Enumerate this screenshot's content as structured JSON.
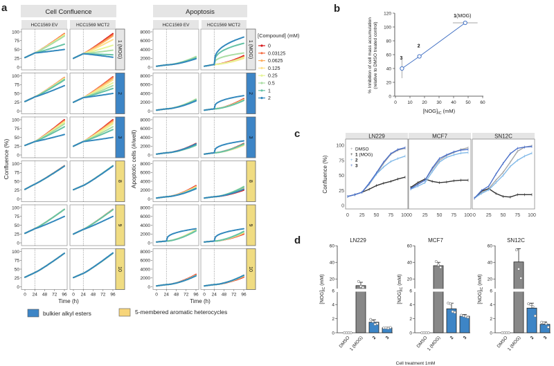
{
  "panel_labels": {
    "a": "a",
    "b": "b",
    "c": "c",
    "d": "d"
  },
  "legend_groups": [
    {
      "label": "bulkier alkyl esters",
      "color": "#3d85c6"
    },
    {
      "label": "5-membered aromatic heterocycles",
      "color": "#f7d57a"
    }
  ],
  "chart_data": [
    {
      "panel": "a-confluence",
      "type": "line",
      "title": "Cell Confluence",
      "columns": [
        "HCC1569 EV",
        "HCC1569 MCT2"
      ],
      "rows": [
        {
          "label": "1 (MOG)",
          "group_color": "#e6e6e6",
          "EV": {
            "t0": 27,
            "t24": 40,
            "end_96h": [
              95,
              95,
              93,
              92,
              90,
              88,
              65,
              50
            ]
          },
          "MCT2": {
            "t0": 25,
            "t24": 38,
            "end_96h": [
              95,
              92,
              88,
              78,
              62,
              48,
              35,
              28
            ]
          }
        },
        {
          "label": "2",
          "group_color": "#3d85c6",
          "EV": {
            "t0": 27,
            "t24": 40,
            "end_96h": [
              95,
              95,
              94,
              93,
              92,
              90,
              88,
              72
            ]
          },
          "MCT2": {
            "t0": 25,
            "t24": 38,
            "end_96h": [
              97,
              96,
              93,
              88,
              80,
              72,
              64,
              50
            ]
          }
        },
        {
          "label": "3",
          "group_color": "#3d85c6",
          "EV": {
            "t0": 27,
            "t24": 38,
            "end_96h": [
              100,
              98,
              96,
              94,
              92,
              88,
              80,
              58
            ]
          },
          "MCT2": {
            "t0": 25,
            "t24": 38,
            "end_96h": [
              100,
              98,
              95,
              92,
              88,
              80,
              72,
              50
            ]
          }
        },
        {
          "label": "8",
          "group_color": "#f0dc82",
          "EV": {
            "t0": 27,
            "t24": 42,
            "end_96h": [
              94,
              94,
              93,
              93,
              93,
              93,
              93,
              93
            ]
          },
          "MCT2": {
            "t0": 26,
            "t24": 38,
            "end_96h": [
              94,
              94,
              94,
              94,
              94,
              94,
              94,
              93
            ]
          }
        },
        {
          "label": "9",
          "group_color": "#f0dc82",
          "EV": {
            "t0": 27,
            "t24": 40,
            "end_96h": [
              95,
              95,
              95,
              95,
              95,
              95,
              95,
              75
            ]
          },
          "MCT2": {
            "t0": 25,
            "t24": 38,
            "end_96h": [
              95,
              95,
              94,
              94,
              94,
              94,
              94,
              75
            ]
          }
        },
        {
          "label": "10",
          "group_color": "#f0dc82",
          "EV": {
            "t0": 27,
            "t24": 40,
            "end_96h": [
              95,
              95,
              95,
              95,
              95,
              95,
              95,
              95
            ]
          },
          "MCT2": {
            "t0": 26,
            "t24": 38,
            "end_96h": [
              95,
              95,
              95,
              95,
              95,
              95,
              95,
              96
            ]
          }
        }
      ],
      "xlabel": "Time (h)",
      "ylabel": "Confluence (%)",
      "xticks": [
        0,
        24,
        48,
        72,
        96
      ],
      "yticks": [
        0,
        25,
        50,
        75,
        100
      ],
      "xlim": [
        0,
        96
      ],
      "ylim": [
        0,
        100
      ],
      "reference_line_x": 24
    },
    {
      "panel": "a-apoptosis",
      "type": "line",
      "title": "Apoptosis",
      "columns": [
        "HCC1569 EV",
        "HCC1569 MCT2"
      ],
      "rows": [
        {
          "label": "1 (MOG)",
          "group_color": "#e6e6e6",
          "EV": {
            "t0": 200,
            "t24": 500,
            "end_96h": [
              2000,
              2000,
              2100,
              2200,
              2300,
              2400,
              2100,
              1900
            ]
          },
          "MCT2": {
            "t0": 200,
            "t24": 600,
            "end_96h": [
              2600,
              2400,
              2200,
              2000,
              2200,
              3200,
              5400,
              6800
            ]
          }
        },
        {
          "label": "2",
          "group_color": "#3d85c6",
          "EV": {
            "t0": 200,
            "t24": 500,
            "end_96h": [
              2600,
              2600,
              2600,
              2700,
              2700,
              2700,
              2500,
              2300
            ]
          },
          "MCT2": {
            "t0": 200,
            "t24": 500,
            "end_96h": [
              2800,
              2700,
              2600,
              2500,
              2500,
              2400,
              2400,
              3500
            ]
          }
        },
        {
          "label": "3",
          "group_color": "#3d85c6",
          "EV": {
            "t0": 200,
            "t24": 500,
            "end_96h": [
              2600,
              2500,
              2400,
              2300,
              2200,
              2200,
              2200,
              2500
            ]
          },
          "MCT2": {
            "t0": 200,
            "t24": 500,
            "end_96h": [
              2600,
              2400,
              2200,
              2200,
              2300,
              2400,
              2500,
              3200
            ]
          }
        },
        {
          "label": "8",
          "group_color": "#f0dc82",
          "EV": {
            "t0": 200,
            "t24": 500,
            "end_96h": [
              3000,
              2900,
              2800,
              2700,
              2600,
              2500,
              2400,
              2300
            ]
          },
          "MCT2": {
            "t0": 200,
            "t24": 500,
            "end_96h": [
              2000,
              2200,
              2400,
              2600,
              2800,
              2800,
              2700,
              2200
            ]
          }
        },
        {
          "label": "9",
          "group_color": "#f0dc82",
          "EV": {
            "t0": 200,
            "t24": 400,
            "end_96h": [
              2800,
              2900,
              3000,
              3000,
              2900,
              2800,
              2700,
              3200
            ]
          },
          "MCT2": {
            "t0": 200,
            "t24": 400,
            "end_96h": [
              2000,
              2100,
              2200,
              2300,
              2400,
              2500,
              2600,
              3200
            ]
          }
        },
        {
          "label": "10",
          "group_color": "#f0dc82",
          "EV": {
            "t0": 200,
            "t24": 500,
            "end_96h": [
              2800,
              2700,
              2600,
              2600,
              2500,
              2500,
              2500,
              2500
            ]
          },
          "MCT2": {
            "t0": 200,
            "t24": 500,
            "end_96h": [
              2200,
              2300,
              2400,
              2500,
              2500,
              2600,
              2600,
              2600
            ]
          }
        }
      ],
      "xlabel": "Time (h)",
      "ylabel": "Apoptotic cells (#/well)",
      "xticks": [
        0,
        24,
        48,
        72,
        96
      ],
      "yticks": [
        0,
        2000,
        4000,
        6000,
        8000
      ],
      "xlim": [
        0,
        96
      ],
      "ylim": [
        0,
        8000
      ],
      "reference_line_x": 24,
      "legend": {
        "title": "[Compound] (mM)",
        "concentrations": [
          "0",
          "0.03125",
          "0.0625",
          "0.125",
          "0.25",
          "0.5",
          "1",
          "2"
        ],
        "colors": [
          "#d7191c",
          "#f46d43",
          "#fdae61",
          "#fee08b",
          "#e6f598",
          "#abdda4",
          "#66c2a5",
          "#3288bd"
        ]
      }
    },
    {
      "panel": "b",
      "type": "scatter",
      "points": [
        {
          "label": "3",
          "x": 4.5,
          "y": 40,
          "yerr": 14,
          "xerr": 0
        },
        {
          "label": "2",
          "x": 16.5,
          "y": 57.5,
          "yerr": 3,
          "xerr": 1
        },
        {
          "label": "1",
          "label_suffix": "(MOG)",
          "x": 48,
          "y": 106,
          "yerr": 2,
          "xerr": 8.5
        }
      ],
      "connected": true,
      "color": "#4472c4",
      "xlabel": "[NOG]",
      "xlabel_sub": "IC",
      "xlabel_unit": " (mM)",
      "ylabel_line1": "% Inhibition of cell mass accumulation",
      "ylabel_line2": "(relative to DMSO treated control)",
      "xticks": [
        0,
        10,
        20,
        30,
        40,
        50,
        60
      ],
      "yticks": [
        0,
        20,
        40,
        60,
        80,
        100,
        120
      ],
      "xlim": [
        0,
        60
      ],
      "ylim": [
        0,
        120
      ]
    },
    {
      "panel": "c",
      "type": "line",
      "facets": [
        "LN229",
        "MCF7",
        "SN12C"
      ],
      "x": [
        0,
        12.5,
        25,
        37.5,
        50,
        62.5,
        75,
        87.5,
        100
      ],
      "series_labels": [
        {
          "bold": "",
          "text": "DMSO"
        },
        {
          "bold": "1",
          "text": " (MOG)"
        },
        {
          "bold": "2",
          "text": ""
        },
        {
          "bold": "3",
          "text": ""
        }
      ],
      "series_colors": [
        "#a6a6a6",
        "#333333",
        "#7fb8e8",
        "#4a6fc9"
      ],
      "data": {
        "LN229": [
          [
            15,
            18,
            22,
            35,
            52,
            70,
            85,
            92,
            95
          ],
          [
            15,
            18,
            22,
            27,
            33,
            37,
            40,
            44,
            47
          ],
          [
            15,
            18,
            22,
            36,
            52,
            64,
            73,
            78,
            82
          ],
          [
            15,
            18,
            22,
            37,
            54,
            72,
            86,
            93,
            96
          ]
        ],
        "MCF7": [
          [
            30,
            36,
            42,
            60,
            75,
            83,
            88,
            93,
            96
          ],
          [
            30,
            38,
            44,
            40,
            38,
            39,
            41,
            42,
            42
          ],
          [
            27,
            32,
            38,
            56,
            72,
            80,
            84,
            87,
            88
          ],
          [
            28,
            35,
            42,
            62,
            78,
            84,
            89,
            92,
            93
          ]
        ],
        "SN12C": [
          [
            12,
            22,
            28,
            42,
            55,
            72,
            90,
            97,
            99
          ],
          [
            12,
            24,
            28,
            20,
            15,
            14,
            18,
            18,
            18
          ],
          [
            12,
            20,
            26,
            38,
            50,
            65,
            75,
            82,
            87
          ],
          [
            12,
            25,
            32,
            52,
            70,
            86,
            95,
            97,
            98
          ]
        ]
      },
      "ylabel": "Confluence (%)",
      "xticks": [
        0,
        25,
        50,
        75,
        100
      ],
      "yticks": [
        0,
        25,
        50,
        75,
        100
      ],
      "xlim": [
        0,
        100
      ],
      "ylim": [
        0,
        100
      ]
    },
    {
      "panel": "d",
      "type": "bar",
      "facets": [
        "LN229",
        "MCF7",
        "SN12C"
      ],
      "categories": [
        "DMSO",
        "1 (MOG)",
        "2",
        "3"
      ],
      "category_colors": [
        "#888888",
        "#888888",
        "#3d85c6",
        "#3d85c6"
      ],
      "values": {
        "LN229": [
          0,
          12,
          1.5,
          0.7
        ],
        "MCF7": [
          0,
          36,
          3.4,
          2.35
        ],
        "SN12C": [
          0,
          40.5,
          3.5,
          1.2
        ]
      },
      "errors": {
        "LN229": [
          0,
          4,
          0.35,
          0.1
        ],
        "MCF7": [
          0,
          4,
          0.8,
          0.25
        ],
        "SN12C": [
          0,
          16,
          0.7,
          0.35
        ]
      },
      "replicates": {
        "LN229": [
          [
            0,
            0,
            0,
            0
          ],
          [
            17,
            11,
            10
          ],
          [
            1.9,
            1.6,
            1.2,
            1.3
          ],
          [
            0.7,
            0.7,
            0.65,
            0.75
          ]
        ],
        "MCF7": [
          [
            0,
            0,
            0,
            0
          ],
          [
            41,
            37,
            34
          ],
          [
            4.2,
            4.1,
            3.0,
            2.9
          ],
          [
            2.5,
            2.4,
            2.3,
            2.2
          ]
        ],
        "SN12C": [
          [
            0,
            0,
            0,
            0
          ],
          [
            55,
            32,
            21
          ],
          [
            4.1,
            4.0,
            3.7,
            2.4
          ],
          [
            1.5,
            1.4,
            1.3,
            0.8
          ]
        ]
      },
      "ylabel": "[NOG]",
      "ylabel_sub": "IC",
      "ylabel_unit": " (mM)",
      "yticks_lower": [
        0,
        2,
        4,
        6
      ],
      "yticks_upper": [
        20,
        40,
        60
      ],
      "axis_break": 6,
      "ylim": [
        0,
        60
      ],
      "xlabel": "Cell treatment 1mM"
    }
  ]
}
